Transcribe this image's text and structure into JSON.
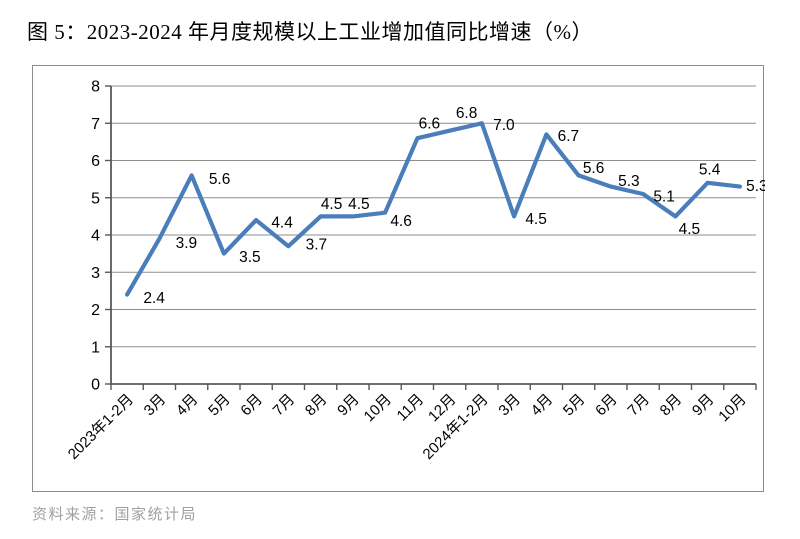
{
  "title": "图 5：2023-2024 年月度规模以上工业增加值同比增速（%）",
  "source": "资料来源：国家统计局",
  "chart_data": {
    "type": "line",
    "title": "图 5：2023-2024 年月度规模以上工业增加值同比增速（%）",
    "categories": [
      "2023年1-2月",
      "3月",
      "4月",
      "5月",
      "6月",
      "7月",
      "8月",
      "9月",
      "10月",
      "11月",
      "12月",
      "2024年1-2月",
      "3月",
      "4月",
      "5月",
      "6月",
      "7月",
      "8月",
      "9月",
      "10月"
    ],
    "values": [
      2.4,
      3.9,
      5.6,
      3.5,
      4.4,
      3.7,
      4.5,
      4.5,
      4.6,
      6.6,
      6.8,
      7.0,
      4.5,
      6.7,
      5.6,
      5.3,
      5.1,
      4.5,
      5.4,
      5.3
    ],
    "xlabel": "",
    "ylabel": "",
    "ylim": [
      0,
      8
    ],
    "ytick_step": 1,
    "ytick_labels": [
      "0",
      "1",
      "2",
      "3",
      "4",
      "5",
      "6",
      "7",
      "8"
    ],
    "grid": true,
    "legend": "none",
    "data_labels": true,
    "colors": {
      "line": "#4A7EBB",
      "grid": "#8e8e8e",
      "axis": "#595959",
      "label_text": "#000000"
    }
  }
}
